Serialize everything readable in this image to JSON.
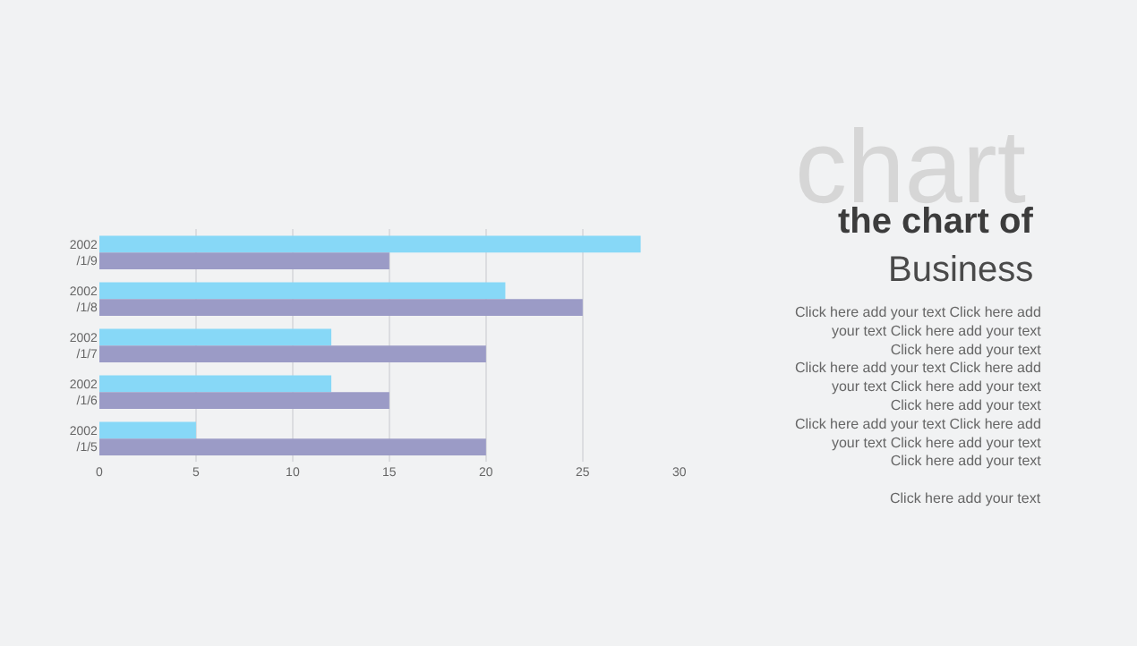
{
  "chart_data": {
    "type": "bar",
    "orientation": "horizontal",
    "categories": [
      "2002\n/1/9",
      "2002\n/1/8",
      "2002\n/1/7",
      "2002\n/1/6",
      "2002\n/1/5"
    ],
    "series": [
      {
        "color": "#87d8f7",
        "values": [
          28,
          21,
          12,
          12,
          5
        ]
      },
      {
        "color": "#9b9bc6",
        "values": [
          15,
          25,
          20,
          15,
          20
        ]
      }
    ],
    "xlim": [
      0,
      30
    ],
    "xticks": [
      0,
      5,
      10,
      15,
      20,
      25,
      30
    ],
    "grid": "x",
    "legend": false,
    "title": "the chart of",
    "subtitle": "Business",
    "annotations": [
      "chart",
      "Click here add your text Click here add\nyour text Click here add your text\nClick here add your text\nClick here add your text Click here add\nyour text Click here add your text\nClick here add your text\nClick here add your text Click here add\nyour text Click here add your text\nClick here add your text",
      "Click here add your text"
    ]
  }
}
